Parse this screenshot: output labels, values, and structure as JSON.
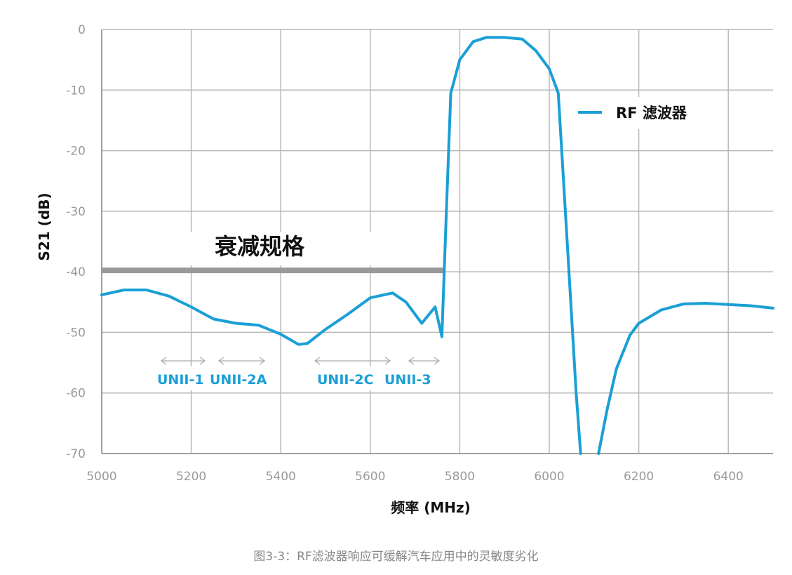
{
  "chart_data": {
    "type": "line",
    "title": "",
    "xlabel": "频率 (MHz)",
    "ylabel": "S21 (dB)",
    "xlim": [
      5000,
      6500
    ],
    "ylim": [
      -70,
      0
    ],
    "x_ticks": [
      5000,
      5200,
      5400,
      5600,
      5800,
      6000,
      6200,
      6400
    ],
    "y_ticks": [
      0,
      -10,
      -20,
      -30,
      -40,
      -50,
      -60,
      -70
    ],
    "grid": true,
    "legend_position": "upper right",
    "series": [
      {
        "name": "RF 滤波器",
        "color": "#1a9fd6",
        "x": [
          5000,
          5050,
          5100,
          5150,
          5200,
          5250,
          5300,
          5350,
          5400,
          5440,
          5460,
          5500,
          5550,
          5600,
          5650,
          5680,
          5715,
          5745,
          5760,
          5770,
          5780,
          5800,
          5830,
          5860,
          5900,
          5940,
          5970,
          6000,
          6020,
          6040,
          6060,
          6070,
          6110,
          6130,
          6150,
          6180,
          6200,
          6250,
          6300,
          6350,
          6400,
          6450,
          6500
        ],
        "y": [
          -43.8,
          -43.0,
          -43.0,
          -44.0,
          -45.8,
          -47.8,
          -48.5,
          -48.8,
          -50.3,
          -52.0,
          -51.8,
          -49.5,
          -47.0,
          -44.3,
          -43.5,
          -45.0,
          -48.5,
          -45.8,
          -50.7,
          -30.0,
          -10.5,
          -5.0,
          -2.0,
          -1.3,
          -1.3,
          -1.6,
          -3.5,
          -6.5,
          -10.5,
          -35.0,
          -60.0,
          -70.0,
          -70.0,
          -62.5,
          -56.0,
          -50.5,
          -48.5,
          -46.3,
          -45.3,
          -45.2,
          -45.4,
          -45.6,
          -46.0
        ]
      }
    ],
    "annotations": {
      "spec_line": {
        "label": "衰减规格",
        "y": -40,
        "x_start": 5000,
        "x_end": 5765,
        "color": "#999999"
      },
      "bands": [
        {
          "label": "UNII-1",
          "x_start": 5150,
          "x_end": 5250
        },
        {
          "label": "UNII-2A",
          "x_start": 5250,
          "x_end": 5350
        },
        {
          "label": "UNII-2C",
          "x_start": 5470,
          "x_end": 5730
        },
        {
          "label": "UNII-3",
          "x_start": 5725,
          "x_end": 5850
        }
      ]
    }
  },
  "labels": {
    "ylabel": "S21 (dB)",
    "xlabel": "频率 (MHz)",
    "legend": "RF 滤波器",
    "spec": "衰减规格",
    "caption": "图3-3：RF滤波器响应可缓解汽车应用中的灵敏度劣化"
  }
}
